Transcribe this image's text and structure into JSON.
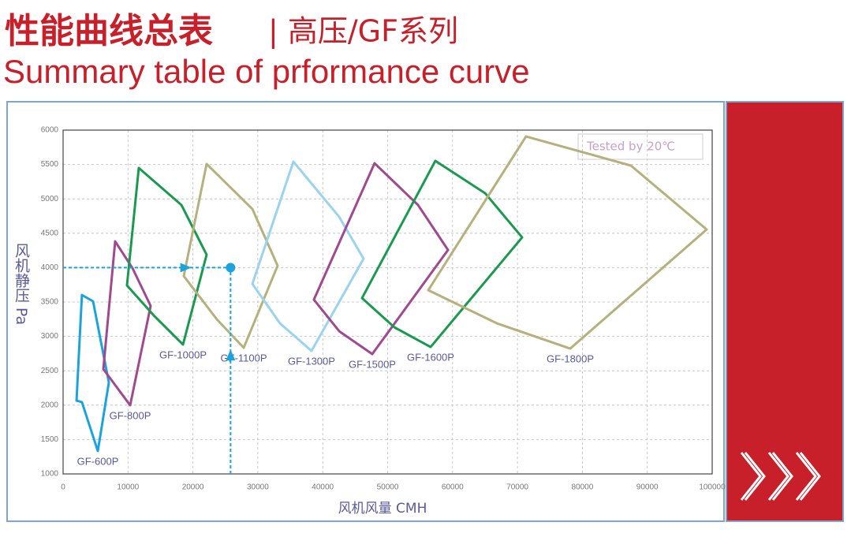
{
  "chart_data": {
    "type": "polygon",
    "title": "性能曲线总表",
    "title_series": "| 高压/GF系列",
    "subtitle": "Summary table of prformance curve",
    "x_label": "风机风量 CMH",
    "y_label": "风机静压 Pa",
    "annotation": "Tested   by 20℃",
    "xlim": [
      0,
      100000
    ],
    "xticks": [
      0,
      10000,
      20000,
      30000,
      40000,
      50000,
      60000,
      70000,
      80000,
      90000,
      100000
    ],
    "ylim": [
      1000,
      6000
    ],
    "yticks": [
      1000,
      1500,
      2000,
      2500,
      3000,
      3500,
      4000,
      4500,
      5000,
      5500,
      6000
    ],
    "grid": true,
    "highlight_point": {
      "x": 25800,
      "y": 4000,
      "color": "#1aa3dc"
    },
    "series": [
      {
        "name": "GF-600P",
        "color": "#1aa3dc",
        "x": [
          2900,
          2070,
          2900,
          5350,
          7050,
          4620
        ],
        "y": [
          3603,
          2066,
          2044,
          1333,
          2330,
          3510
        ]
      },
      {
        "name": "GF-800P",
        "color": "#a0498f",
        "x": [
          8020,
          10690,
          13490,
          10330,
          6200
        ],
        "y": [
          4383,
          3993,
          3443,
          1998,
          2525
        ]
      },
      {
        "name": "GF-1000P",
        "color": "#1a9a4f",
        "x": [
          11660,
          18230,
          22110,
          18470,
          13970,
          9840
        ],
        "y": [
          5450,
          4911,
          4188,
          2881,
          3305,
          3741
        ]
      },
      {
        "name": "GF-1100P",
        "color": "#b5b07c",
        "x": [
          22110,
          29160,
          33050,
          27830,
          23690,
          18590
        ],
        "y": [
          5507,
          4853,
          4028,
          2835,
          3248,
          3878
        ]
      },
      {
        "name": "GF-1300P",
        "color": "#9ad3ee",
        "x": [
          35480,
          42530,
          46290,
          38270,
          33410,
          29160
        ],
        "y": [
          5541,
          4739,
          4131,
          2789,
          3190,
          3764
        ]
      },
      {
        "name": "GF-1500P",
        "color": "#a0498f",
        "x": [
          47990,
          54680,
          59300,
          47630,
          42530,
          38640
        ],
        "y": [
          5518,
          4911,
          4257,
          2743,
          3076,
          3534
        ]
      },
      {
        "name": "GF-1600P",
        "color": "#1a9a4f",
        "x": [
          57350,
          65010,
          70720,
          56620,
          51030,
          46050
        ],
        "y": [
          5553,
          5083,
          4440,
          2846,
          3133,
          3557
        ]
      },
      {
        "name": "GF-1800P",
        "color": "#b5b07c",
        "x": [
          71320,
          87480,
          99150,
          78130,
          66830,
          56260
        ],
        "y": [
          5908,
          5484,
          4555,
          2823,
          3190,
          3672
        ]
      }
    ]
  }
}
